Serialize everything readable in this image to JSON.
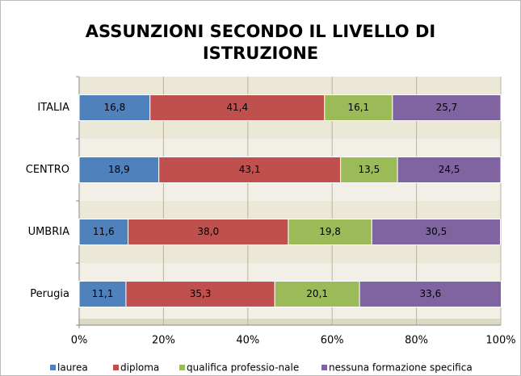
{
  "chart_data": {
    "type": "stacked-bar-horizontal",
    "title": "ASSUNZIONI SECONDO IL LIVELLO DI ISTRUZIONE",
    "categories": [
      "ITALIA",
      "CENTRO",
      "UMBRIA",
      "Perugia"
    ],
    "series": [
      {
        "name": "laurea",
        "color": "#4f81bd",
        "values": [
          16.8,
          18.9,
          11.6,
          11.1
        ],
        "value_labels": [
          "16,8",
          "18,9",
          "11,6",
          "11,1"
        ]
      },
      {
        "name": "diploma",
        "color": "#c0504d",
        "values": [
          41.4,
          43.1,
          38.0,
          35.3
        ],
        "value_labels": [
          "41,4",
          "43,1",
          "38,0",
          "35,3"
        ]
      },
      {
        "name": "qualifica professio-nale",
        "color": "#9bbb59",
        "values": [
          16.1,
          13.5,
          19.8,
          20.1
        ],
        "value_labels": [
          "16,1",
          "13,5",
          "19,8",
          "20,1"
        ]
      },
      {
        "name": "nessuna formazione specifica",
        "color": "#8064a2",
        "values": [
          25.7,
          24.5,
          30.5,
          33.6
        ],
        "value_labels": [
          "25,7",
          "24,5",
          "30,5",
          "33,6"
        ]
      }
    ],
    "xlim": [
      0,
      100
    ],
    "xticks": [
      {
        "value": 0,
        "label": "0%"
      },
      {
        "value": 20,
        "label": "20%"
      },
      {
        "value": 40,
        "label": "40%"
      },
      {
        "value": 60,
        "label": "60%"
      },
      {
        "value": 80,
        "label": "80%"
      },
      {
        "value": 100,
        "label": "100%"
      }
    ],
    "grid": true,
    "legend": "bottom"
  }
}
